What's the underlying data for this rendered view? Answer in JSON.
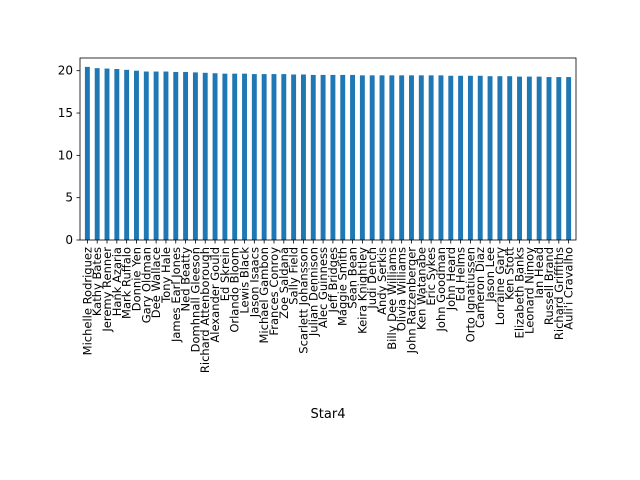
{
  "chart_data": {
    "type": "bar",
    "title": "",
    "xlabel": "Star4",
    "ylabel": "",
    "ylim": [
      0,
      21.5
    ],
    "yticks": [
      0,
      5,
      10,
      15,
      20
    ],
    "grid": false,
    "legend": "none",
    "bar_color": "#1f77b4",
    "categories": [
      "Michelle Rodriguez",
      "Kathy Bates",
      "Jeremy Renner",
      "Hank Azaria",
      "Mark Ruffalo",
      "Donnie Yen",
      "Gary Oldman",
      "Dee Wallace",
      "Tony Hale",
      "James Earl Jones",
      "Ned Beatty",
      "Domhnall Gleeson",
      "Richard Attenborough",
      "Alexander Gould",
      "Ed Skrein",
      "Orlando Bloom",
      "Lewis Black",
      "Jason Isaacs",
      "Michael Gambon",
      "Frances Conroy",
      "Zoe Saldana",
      "Sally Field",
      "Scarlett Johansson",
      "Julian Dennison",
      "Alec Guinness",
      "Jeff Bridges",
      "Maggie Smith",
      "Sean Bean",
      "Keira Knightley",
      "Judi Dench",
      "Andy Serkis",
      "Billy Dee Williams",
      "Olivia Williams",
      "John Ratzenberger",
      "Ken Watanabe",
      "Eric Sykes",
      "John Goodman",
      "John Heard",
      "Ed Helms",
      "Orto Ignatiussen",
      "Cameron Diaz",
      "Jason Lee",
      "Lorraine Gary",
      "Ken Stott",
      "Elizabeth Banks",
      "Leonard Nimoy",
      "Ian Head",
      "Russell Brand",
      "Richard Griffiths",
      "Auli'i Cravalho"
    ],
    "values": [
      20.45,
      20.3,
      20.25,
      20.2,
      20.1,
      20.0,
      19.9,
      19.9,
      19.9,
      19.85,
      19.85,
      19.8,
      19.75,
      19.7,
      19.65,
      19.65,
      19.65,
      19.6,
      19.6,
      19.6,
      19.6,
      19.55,
      19.55,
      19.5,
      19.5,
      19.5,
      19.5,
      19.5,
      19.45,
      19.45,
      19.45,
      19.45,
      19.45,
      19.45,
      19.45,
      19.45,
      19.45,
      19.4,
      19.4,
      19.4,
      19.4,
      19.35,
      19.35,
      19.35,
      19.3,
      19.3,
      19.3,
      19.25,
      19.25,
      19.25
    ]
  }
}
